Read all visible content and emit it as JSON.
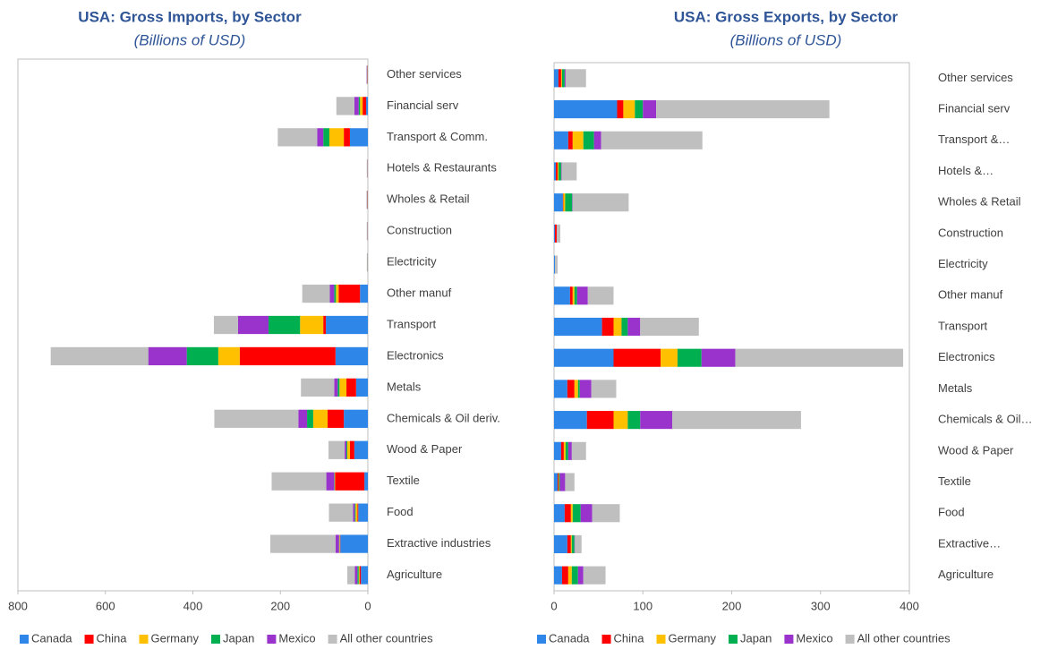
{
  "chart_data": [
    {
      "type": "bar",
      "orientation": "horizontal",
      "stacked": true,
      "title": "USA: Gross Imports, by Sector",
      "subtitle": "(Billions of USD)",
      "categories": [
        "Other services",
        "Financial serv",
        "Transport & Comm.",
        "Hotels & Restaurants",
        "Wholes & Retail",
        "Construction",
        "Electricity",
        "Other manuf",
        "Transport",
        "Electronics",
        "Metals",
        "Chemicals & Oil deriv.",
        "Wood & Paper",
        "Textile",
        "Food",
        "Extractive industries",
        "Agriculture"
      ],
      "series": [
        {
          "name": "Canada",
          "color": "#2e86e8",
          "values": [
            0.5,
            4,
            41,
            0.5,
            0.5,
            0.5,
            0.5,
            18,
            96,
            74,
            27,
            55,
            31,
            8,
            22,
            63,
            16
          ]
        },
        {
          "name": "China",
          "color": "#ff0000",
          "values": [
            0.5,
            8,
            14,
            0.3,
            0.5,
            0.3,
            0.2,
            49,
            6,
            219,
            22,
            37,
            10,
            67,
            2,
            1,
            3
          ]
        },
        {
          "name": "Germany",
          "color": "#ffc000",
          "values": [
            0.5,
            6,
            33,
            0.2,
            0.5,
            0.2,
            0.2,
            6,
            53,
            49,
            16,
            33,
            6,
            1,
            4,
            1,
            2
          ]
        },
        {
          "name": "Japan",
          "color": "#00b050",
          "values": [
            0.3,
            3,
            14,
            0.2,
            0.3,
            0.2,
            0.2,
            4,
            72,
            72,
            4,
            14,
            2,
            1,
            2,
            1,
            3
          ]
        },
        {
          "name": "Mexico",
          "color": "#9933cc",
          "values": [
            1,
            10,
            14,
            0.3,
            0.5,
            0.3,
            0.2,
            10,
            70,
            88,
            8,
            20,
            4,
            18,
            4,
            8,
            6
          ]
        },
        {
          "name": "All other countries",
          "color": "#bfbfbf",
          "values": [
            0.5,
            41,
            90,
            1,
            1,
            1,
            1,
            63,
            55,
            223,
            76,
            192,
            37,
            125,
            55,
            149,
            17
          ]
        }
      ],
      "xlim": [
        800,
        0
      ],
      "xticks": [
        800,
        600,
        400,
        200,
        0
      ],
      "legend": "bottom"
    },
    {
      "type": "bar",
      "orientation": "horizontal",
      "stacked": true,
      "title": "USA: Gross Exports, by Sector",
      "subtitle": "(Billions of USD)",
      "categories": [
        "Other services",
        "Financial serv",
        "Transport &…",
        "Hotels &…",
        "Wholes & Retail",
        "Construction",
        "Electricity",
        "Other manuf",
        "Transport",
        "Electronics",
        "Metals",
        "Chemicals & Oil…",
        "Wood & Paper",
        "Textile",
        "Food",
        "Extractive…",
        "Agriculture"
      ],
      "series": [
        {
          "name": "Canada",
          "color": "#2e86e8",
          "values": [
            5,
            71,
            16,
            2,
            10,
            1,
            1,
            18,
            54,
            67,
            15,
            37,
            8,
            4,
            12,
            15,
            9
          ]
        },
        {
          "name": "China",
          "color": "#ff0000",
          "values": [
            3,
            7,
            5,
            2,
            0.5,
            2,
            0,
            3,
            13,
            53,
            8,
            30,
            3,
            1,
            7,
            4,
            7
          ]
        },
        {
          "name": "Germany",
          "color": "#ffc000",
          "values": [
            1,
            13,
            12,
            1,
            2,
            0,
            0,
            2,
            9,
            19,
            4,
            16,
            2,
            0.5,
            2,
            1,
            4
          ]
        },
        {
          "name": "Japan",
          "color": "#00b050",
          "values": [
            3,
            9,
            12,
            3,
            8,
            0,
            0,
            3,
            7,
            27,
            2,
            14,
            3,
            1,
            9,
            3,
            7
          ]
        },
        {
          "name": "Mexico",
          "color": "#9933cc",
          "values": [
            1,
            15,
            8,
            0.5,
            0.5,
            0,
            0,
            12,
            14,
            38,
            13,
            36,
            4,
            6,
            13,
            0.5,
            6
          ]
        },
        {
          "name": "All other countries",
          "color": "#bfbfbf",
          "values": [
            23,
            195,
            114,
            17,
            63,
            4,
            3,
            29,
            66,
            189,
            28,
            145,
            16,
            10.5,
            31,
            7.5,
            25
          ]
        }
      ],
      "xlim": [
        0,
        400
      ],
      "xticks": [
        0,
        100,
        200,
        300,
        400
      ],
      "legend": "bottom"
    }
  ]
}
